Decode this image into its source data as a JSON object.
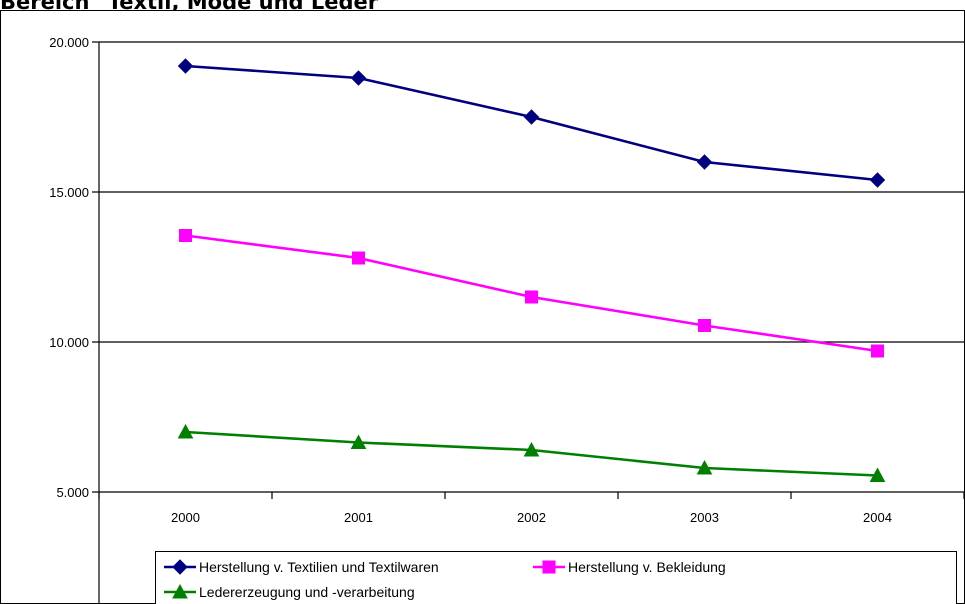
{
  "heading": "Bereich \"Textil, Mode und Leder\"",
  "colors": {
    "background": "#ffffff",
    "gridline": "#000000",
    "axis": "#000000"
  },
  "chart_data": {
    "type": "line",
    "title": "",
    "xlabel": "",
    "ylabel": "",
    "categories": [
      "2000",
      "2001",
      "2002",
      "2003",
      "2004"
    ],
    "ylim": [
      5000,
      20000
    ],
    "yticks": [
      5000,
      10000,
      15000,
      20000
    ],
    "ytick_labels": [
      "5.000",
      "10.000",
      "15.000",
      "20.000"
    ],
    "grid": "horizontal major gridlines",
    "legend_position": "bottom",
    "series": [
      {
        "name": "Herstellung v. Textilien und Textilwaren",
        "values": [
          19200,
          18800,
          17500,
          16000,
          15400
        ],
        "color": "#000080",
        "marker": "diamond"
      },
      {
        "name": "Herstellung v. Bekleidung",
        "values": [
          13550,
          12800,
          11500,
          10550,
          9700
        ],
        "color": "#ff00ff",
        "marker": "square"
      },
      {
        "name": "Ledererzeugung und -verarbeitung",
        "values": [
          7000,
          6650,
          6400,
          5800,
          5550
        ],
        "color": "#008000",
        "marker": "triangle"
      }
    ]
  }
}
